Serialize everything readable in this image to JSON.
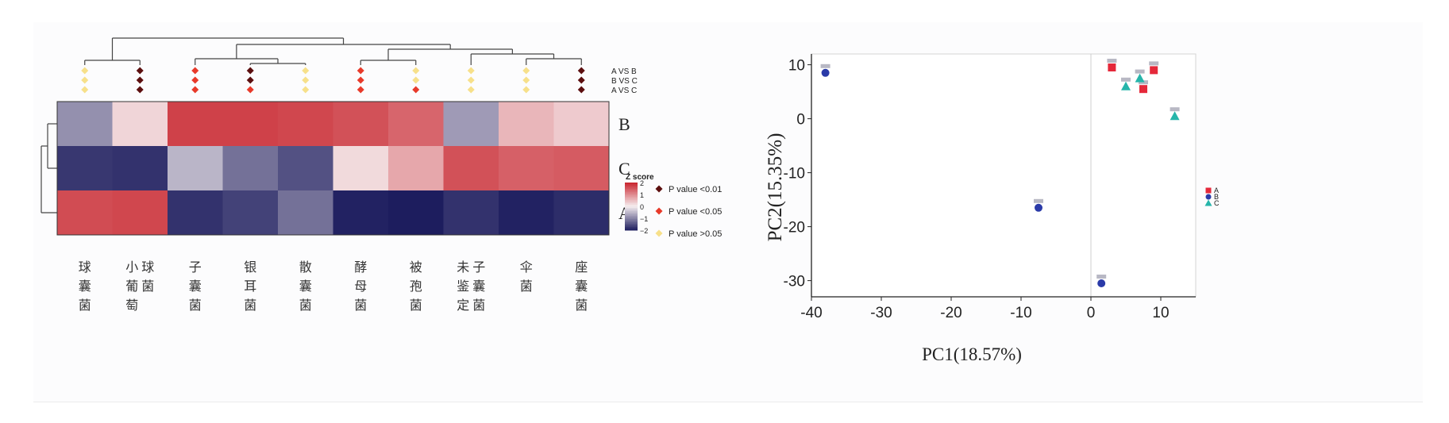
{
  "colors": {
    "heatmap_low": "#1d1d5e",
    "heatmap_mid": "#f6eef0",
    "heatmap_high": "#c8232c",
    "p_lt_001": "#5c0f0f",
    "p_lt_005": "#e83a2a",
    "p_gt_005": "#f7e08a",
    "group_A": "#e5283a",
    "group_B": "#2a3aa8",
    "group_C": "#26b5aa"
  },
  "chart_data": [
    {
      "type": "heatmap",
      "title": "",
      "columns": [
        "球囊菌",
        "小葡萄球菌",
        "子囊菌",
        "银耳菌",
        "散囊菌",
        "酵母菌",
        "被孢菌",
        "未鉴定子囊菌",
        "伞菌",
        "座囊菌"
      ],
      "rows": [
        "B",
        "C",
        "A"
      ],
      "values": [
        [
          -0.9,
          0.25,
          1.7,
          1.7,
          1.65,
          1.55,
          1.35,
          -0.8,
          0.55,
          0.35
        ],
        [
          -1.75,
          -1.8,
          -0.55,
          -1.2,
          -1.5,
          0.2,
          0.7,
          1.55,
          1.4,
          1.45
        ],
        [
          1.6,
          1.65,
          -1.8,
          -1.65,
          -1.2,
          -1.95,
          -2.0,
          -1.8,
          -1.95,
          -1.85
        ]
      ],
      "colorbar": {
        "title": "Z score",
        "ticks": [
          "2",
          "1",
          "0",
          "−1",
          "−2"
        ]
      },
      "significance": {
        "comparisons": [
          "A VS B",
          "B VS C",
          "A VS C"
        ],
        "levels": [
          [
            "gt005",
            "lt001",
            "lt005",
            "lt001",
            "gt005",
            "lt005",
            "gt005",
            "gt005",
            "gt005",
            "lt001"
          ],
          [
            "gt005",
            "lt001",
            "lt005",
            "lt001",
            "gt005",
            "lt005",
            "gt005",
            "gt005",
            "gt005",
            "lt001"
          ],
          [
            "gt005",
            "lt001",
            "lt005",
            "lt005",
            "gt005",
            "lt005",
            "lt005",
            "gt005",
            "gt005",
            "lt001"
          ]
        ],
        "legend": [
          {
            "key": "lt001",
            "label": "P value <0.01"
          },
          {
            "key": "lt005",
            "label": "P value <0.05"
          },
          {
            "key": "gt005",
            "label": "P value >0.05"
          }
        ]
      }
    },
    {
      "type": "scatter",
      "title": "",
      "xlabel": "PC1(18.57%)",
      "ylabel": "PC2(15.35%)",
      "xlim": [
        -40,
        15
      ],
      "ylim": [
        -33,
        12
      ],
      "xticks": [
        -40,
        -30,
        -20,
        -10,
        0,
        10
      ],
      "yticks": [
        10,
        0,
        -10,
        -20,
        -30
      ],
      "xtick_labels": [
        "-40",
        "-30",
        "-20",
        "-10",
        "0",
        "10"
      ],
      "ytick_labels": [
        "10",
        "0",
        "-10",
        "-20",
        "-30"
      ],
      "series": [
        {
          "name": "A",
          "marker": "square",
          "points": [
            [
              3,
              9.5
            ],
            [
              7.5,
              5.5
            ],
            [
              9,
              9
            ]
          ]
        },
        {
          "name": "B",
          "marker": "circle",
          "points": [
            [
              -38,
              8.5
            ],
            [
              -7.5,
              -16.5
            ],
            [
              1.5,
              -30.5
            ]
          ]
        },
        {
          "name": "C",
          "marker": "triangle",
          "points": [
            [
              5,
              6
            ],
            [
              7,
              7.5
            ],
            [
              12,
              0.5
            ]
          ]
        }
      ]
    }
  ]
}
